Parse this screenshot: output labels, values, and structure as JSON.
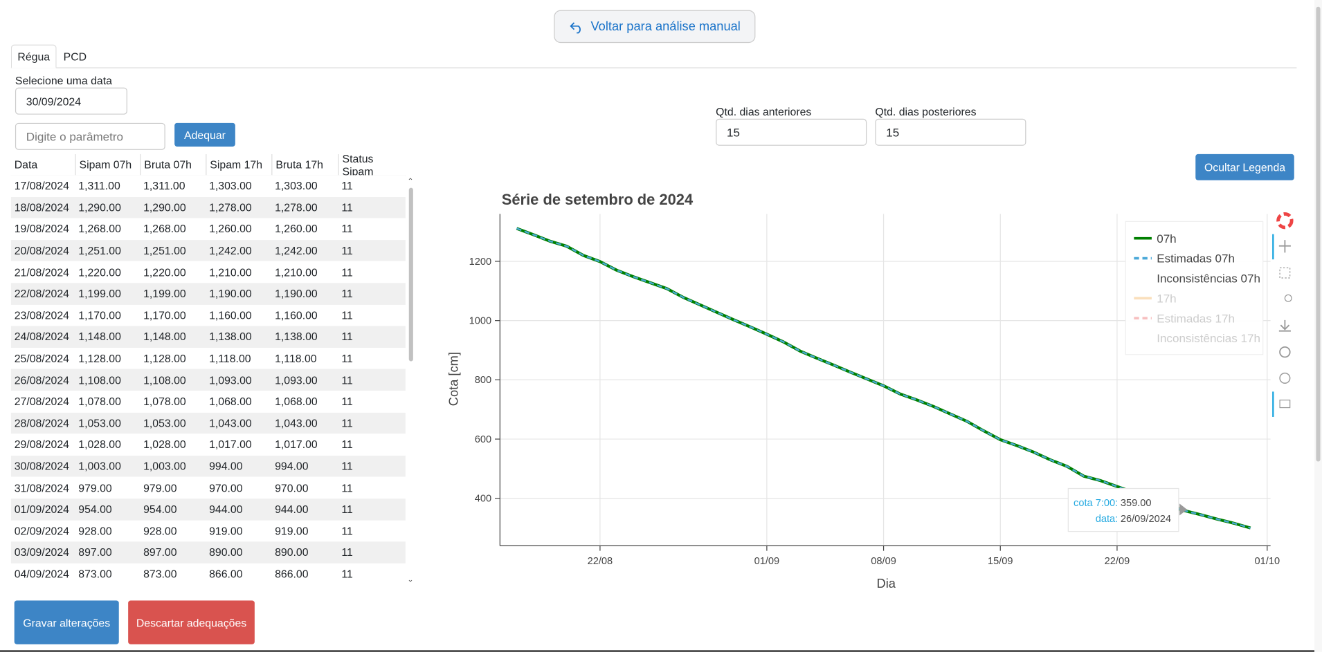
{
  "header": {
    "back_button": "Voltar para análise manual"
  },
  "tabs": [
    "Régua",
    "PCD"
  ],
  "form": {
    "date_label": "Selecione uma data",
    "date_value": "30/09/2024",
    "param_placeholder": "Digite o parâmetro",
    "adjust_button": "Adequar",
    "days_before_label": "Qtd. dias anteriores",
    "days_before_value": "15",
    "days_after_label": "Qtd. dias posteriores",
    "days_after_value": "15",
    "hide_legend_button": "Ocultar Legenda",
    "save_button": "Gravar alterações",
    "discard_button": "Descartar adequações"
  },
  "table": {
    "columns": [
      "Data",
      "Sipam 07h",
      "Bruta 07h",
      "Sipam 17h",
      "Bruta 17h",
      "Status Sipam"
    ],
    "rows": [
      [
        "17/08/2024",
        "1,311.00",
        "1,311.00",
        "1,303.00",
        "1,303.00",
        "11"
      ],
      [
        "18/08/2024",
        "1,290.00",
        "1,290.00",
        "1,278.00",
        "1,278.00",
        "11"
      ],
      [
        "19/08/2024",
        "1,268.00",
        "1,268.00",
        "1,260.00",
        "1,260.00",
        "11"
      ],
      [
        "20/08/2024",
        "1,251.00",
        "1,251.00",
        "1,242.00",
        "1,242.00",
        "11"
      ],
      [
        "21/08/2024",
        "1,220.00",
        "1,220.00",
        "1,210.00",
        "1,210.00",
        "11"
      ],
      [
        "22/08/2024",
        "1,199.00",
        "1,199.00",
        "1,190.00",
        "1,190.00",
        "11"
      ],
      [
        "23/08/2024",
        "1,170.00",
        "1,170.00",
        "1,160.00",
        "1,160.00",
        "11"
      ],
      [
        "24/08/2024",
        "1,148.00",
        "1,148.00",
        "1,138.00",
        "1,138.00",
        "11"
      ],
      [
        "25/08/2024",
        "1,128.00",
        "1,128.00",
        "1,118.00",
        "1,118.00",
        "11"
      ],
      [
        "26/08/2024",
        "1,108.00",
        "1,108.00",
        "1,093.00",
        "1,093.00",
        "11"
      ],
      [
        "27/08/2024",
        "1,078.00",
        "1,078.00",
        "1,068.00",
        "1,068.00",
        "11"
      ],
      [
        "28/08/2024",
        "1,053.00",
        "1,053.00",
        "1,043.00",
        "1,043.00",
        "11"
      ],
      [
        "29/08/2024",
        "1,028.00",
        "1,028.00",
        "1,017.00",
        "1,017.00",
        "11"
      ],
      [
        "30/08/2024",
        "1,003.00",
        "1,003.00",
        "994.00",
        "994.00",
        "11"
      ],
      [
        "31/08/2024",
        "979.00",
        "979.00",
        "970.00",
        "970.00",
        "11"
      ],
      [
        "01/09/2024",
        "954.00",
        "954.00",
        "944.00",
        "944.00",
        "11"
      ],
      [
        "02/09/2024",
        "928.00",
        "928.00",
        "919.00",
        "919.00",
        "11"
      ],
      [
        "03/09/2024",
        "897.00",
        "897.00",
        "890.00",
        "890.00",
        "11"
      ],
      [
        "04/09/2024",
        "873.00",
        "873.00",
        "866.00",
        "866.00",
        "11"
      ]
    ]
  },
  "chart_data": {
    "type": "line",
    "title": "Série de setembro de 2024",
    "x_label": "Dia",
    "y_label": "Cota [cm]",
    "x": [
      "17/08",
      "18/08",
      "19/08",
      "20/08",
      "21/08",
      "22/08",
      "23/08",
      "24/08",
      "25/08",
      "26/08",
      "27/08",
      "28/08",
      "29/08",
      "30/08",
      "31/08",
      "01/09",
      "02/09",
      "03/09",
      "04/09",
      "05/09",
      "06/09",
      "07/09",
      "08/09",
      "09/09",
      "10/09",
      "11/09",
      "12/09",
      "13/09",
      "14/09",
      "15/09",
      "16/09",
      "17/09",
      "18/09",
      "19/09",
      "20/09",
      "21/09",
      "22/09",
      "23/09",
      "24/09",
      "25/09",
      "26/09",
      "27/09",
      "28/09",
      "29/09",
      "30/09"
    ],
    "series": [
      {
        "name": "07h",
        "color": "#008000",
        "dash": false,
        "values": [
          1311,
          1290,
          1268,
          1251,
          1220,
          1199,
          1170,
          1148,
          1128,
          1108,
          1078,
          1053,
          1028,
          1003,
          979,
          954,
          928,
          897,
          873,
          850,
          826,
          803,
          780,
          752,
          732,
          710,
          685,
          660,
          628,
          598,
          578,
          556,
          530,
          508,
          475,
          460,
          440,
          420,
          398,
          378,
          359,
          345,
          330,
          316,
          300
        ]
      },
      {
        "name": "Estimadas 07h",
        "color": "#4aa8d8",
        "dash": true,
        "values": [
          1311,
          1290,
          1268,
          1251,
          1220,
          1199,
          1170,
          1148,
          1128,
          1108,
          1078,
          1053,
          1028,
          1003,
          979,
          954,
          928,
          897,
          873,
          850,
          826,
          803,
          780,
          752,
          732,
          710,
          685,
          660,
          628,
          598,
          578,
          556,
          530,
          508,
          475,
          460,
          440,
          420,
          398,
          378,
          359,
          345,
          330,
          316,
          300
        ]
      },
      {
        "name": "Inconsistências 07h"
      },
      {
        "name": "17h",
        "color": "#f5c07a",
        "dash": false,
        "muted": true
      },
      {
        "name": "Estimadas 17h",
        "color": "#f08080",
        "dash": true,
        "muted": true
      },
      {
        "name": "Inconsistências 17h",
        "muted": true
      }
    ],
    "xlim": [
      "16/08",
      "01/10"
    ],
    "xticks": [
      "22/08",
      "01/09",
      "08/09",
      "15/09",
      "22/09",
      "01/10"
    ],
    "ylim": [
      240,
      1360
    ],
    "yticks": [
      400,
      600,
      800,
      1000,
      1200
    ],
    "grid": true,
    "legend": "top-right",
    "tooltip": {
      "label1": "cota 7:00:",
      "value1": "359.00",
      "label2": "data:",
      "value2": "26/09/2024"
    }
  }
}
